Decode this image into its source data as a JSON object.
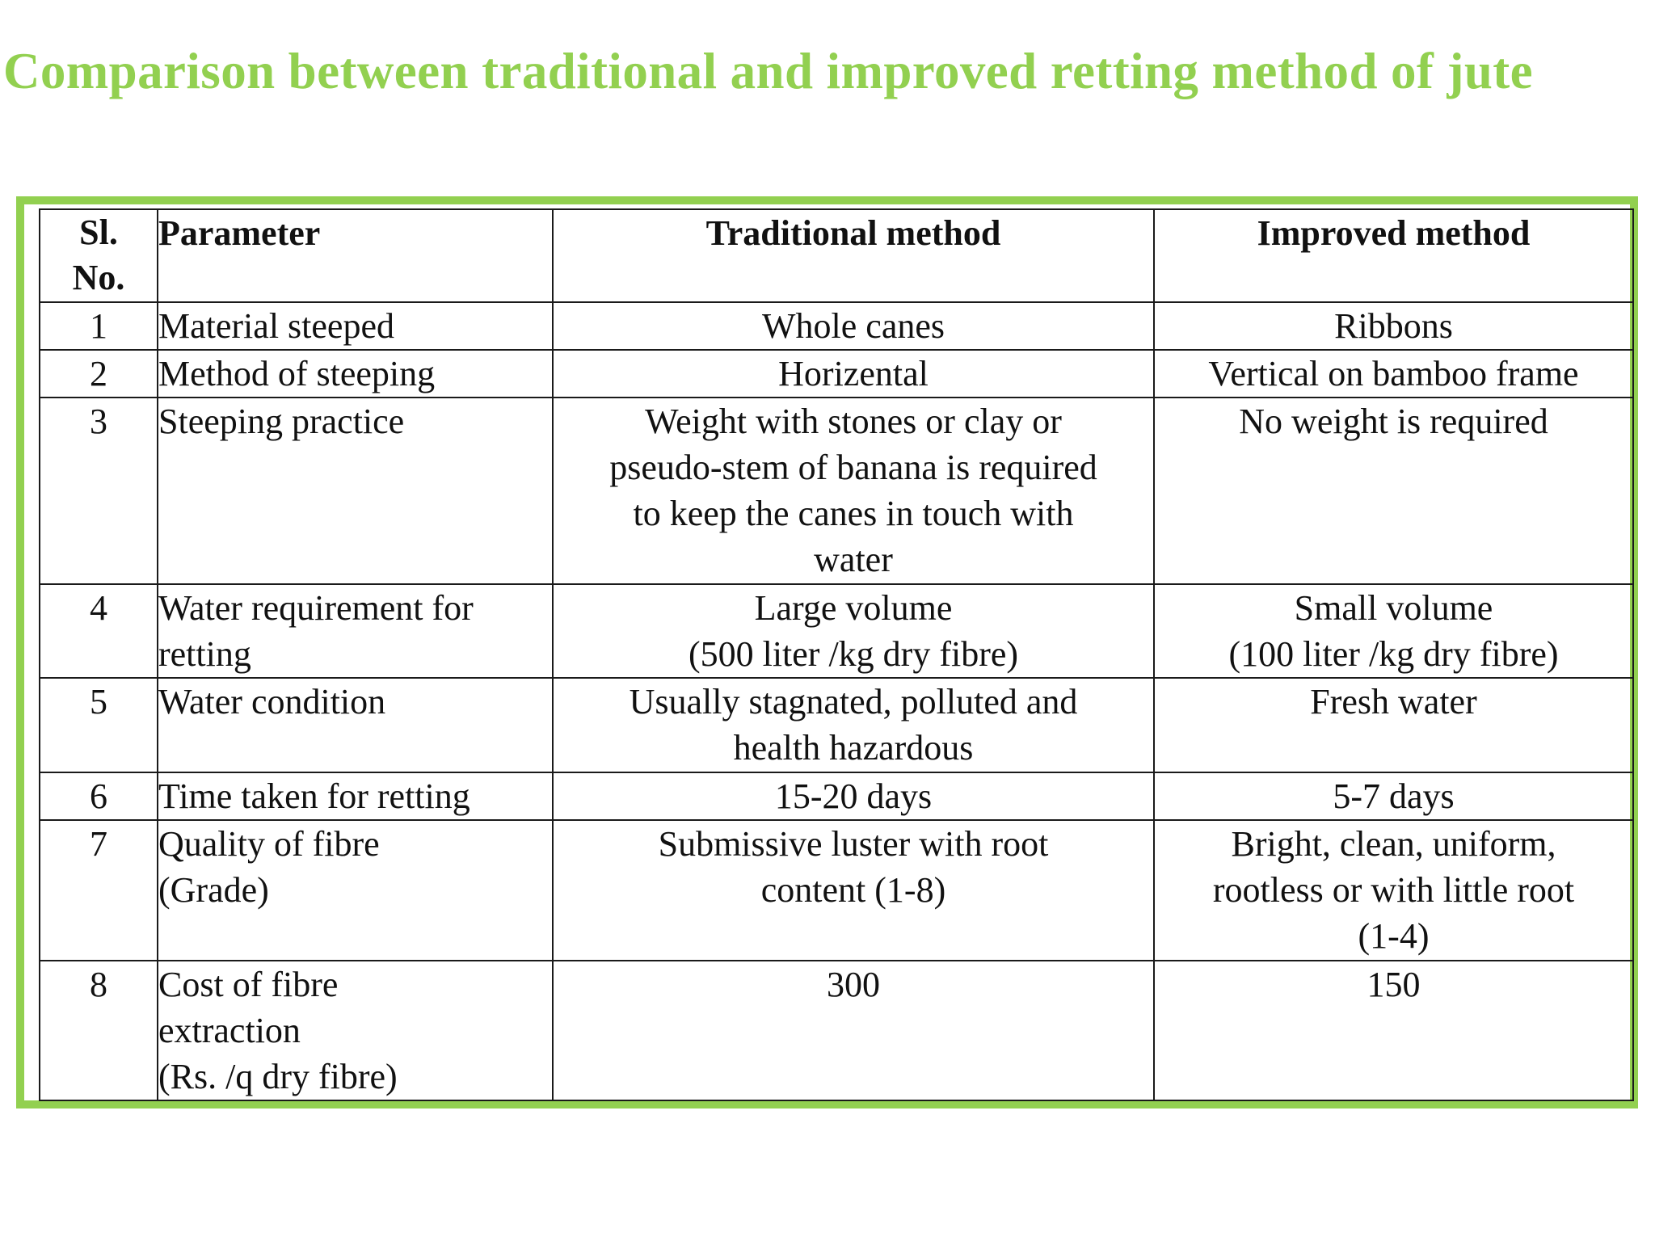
{
  "title": "Comparison between traditional and improved retting method of jute",
  "table": {
    "headers": {
      "sl_no": "Sl.\nNo.",
      "parameter": "Parameter",
      "traditional": "Traditional method",
      "improved": "Improved method"
    },
    "rows": [
      {
        "sl": "1",
        "parameter": "Material steeped",
        "traditional": "Whole canes",
        "improved": "Ribbons"
      },
      {
        "sl": "2",
        "parameter": "Method of steeping",
        "traditional": "Horizental",
        "improved": "Vertical on bamboo frame"
      },
      {
        "sl": "3",
        "parameter": "Steeping practice",
        "traditional": "Weight with stones or clay or\npseudo-stem of banana is required\nto keep the canes in touch with\nwater",
        "improved": "No weight is required"
      },
      {
        "sl": "4",
        "parameter": "Water requirement for\nretting",
        "traditional": "Large volume\n(500 liter /kg dry fibre)",
        "improved": "Small volume\n(100 liter /kg dry fibre)"
      },
      {
        "sl": "5",
        "parameter": "Water condition",
        "traditional": "Usually stagnated, polluted and\nhealth hazardous",
        "improved": "Fresh water"
      },
      {
        "sl": "6",
        "parameter": "Time taken for retting",
        "traditional": "15-20 days",
        "improved": "5-7 days"
      },
      {
        "sl": "7",
        "parameter": "Quality of fibre\n(Grade)",
        "traditional": "Submissive luster with root\ncontent (1-8)",
        "improved": "Bright, clean, uniform,\nrootless or with little root\n(1-4)"
      },
      {
        "sl": "8",
        "parameter": "Cost of fibre\nextraction\n(Rs. /q dry fibre)",
        "traditional": "300",
        "improved": "150"
      }
    ]
  },
  "colors": {
    "accent_green": "#92d050",
    "text": "#111111",
    "grid_line": "#1a1a1a"
  }
}
